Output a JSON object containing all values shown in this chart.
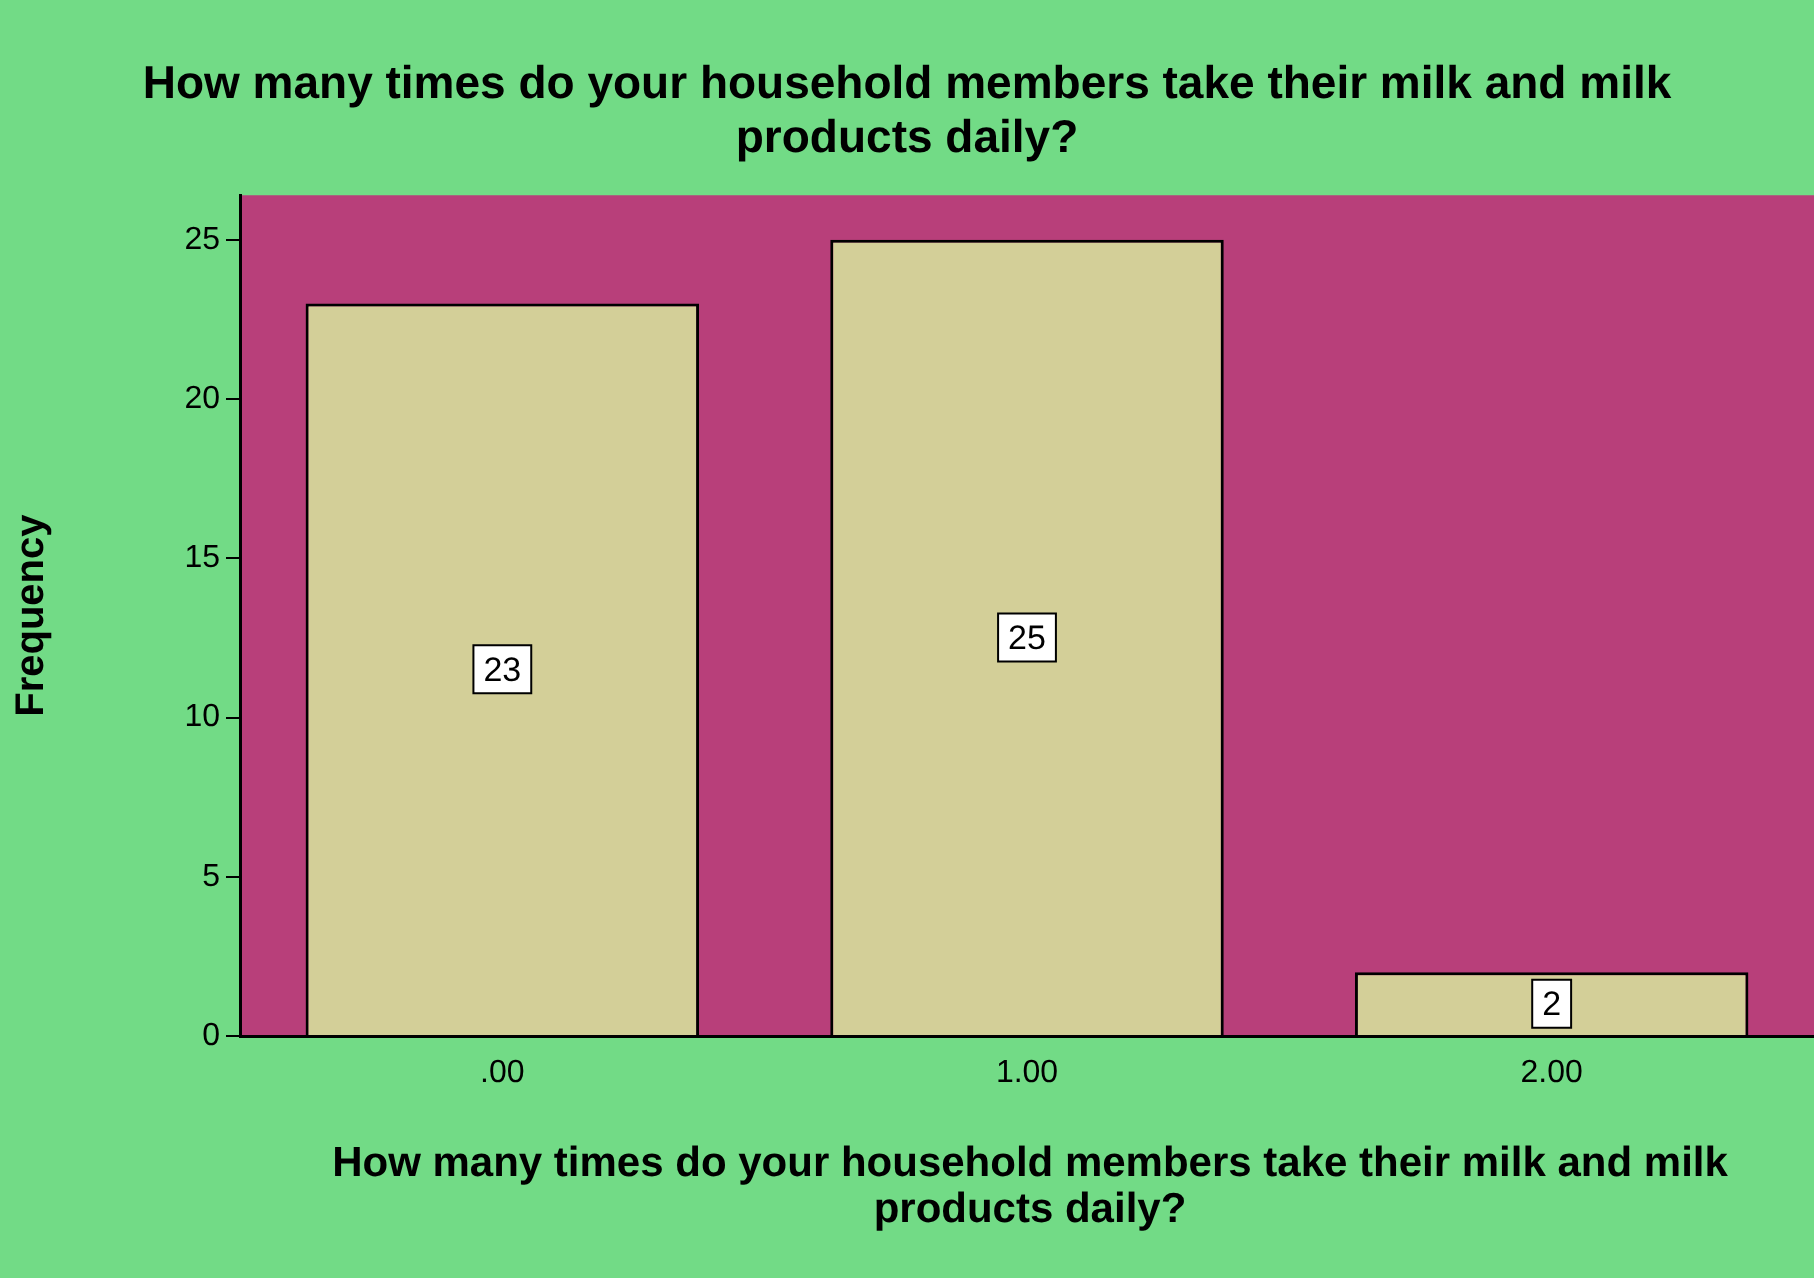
{
  "chart_data": {
    "type": "bar",
    "title": "How many times do your household members take their milk and milk products daily?",
    "xlabel": "How many times do your household members take their milk and milk products daily?",
    "ylabel": "Frequency",
    "categories": [
      ".00",
      "1.00",
      "2.00"
    ],
    "values": [
      23,
      25,
      2
    ],
    "color": "#d3cf98",
    "ylim": [
      0,
      26.4
    ],
    "yticks": [
      0,
      5,
      10,
      15,
      20,
      25
    ],
    "grid": false,
    "legend": false,
    "data_labels": true
  }
}
